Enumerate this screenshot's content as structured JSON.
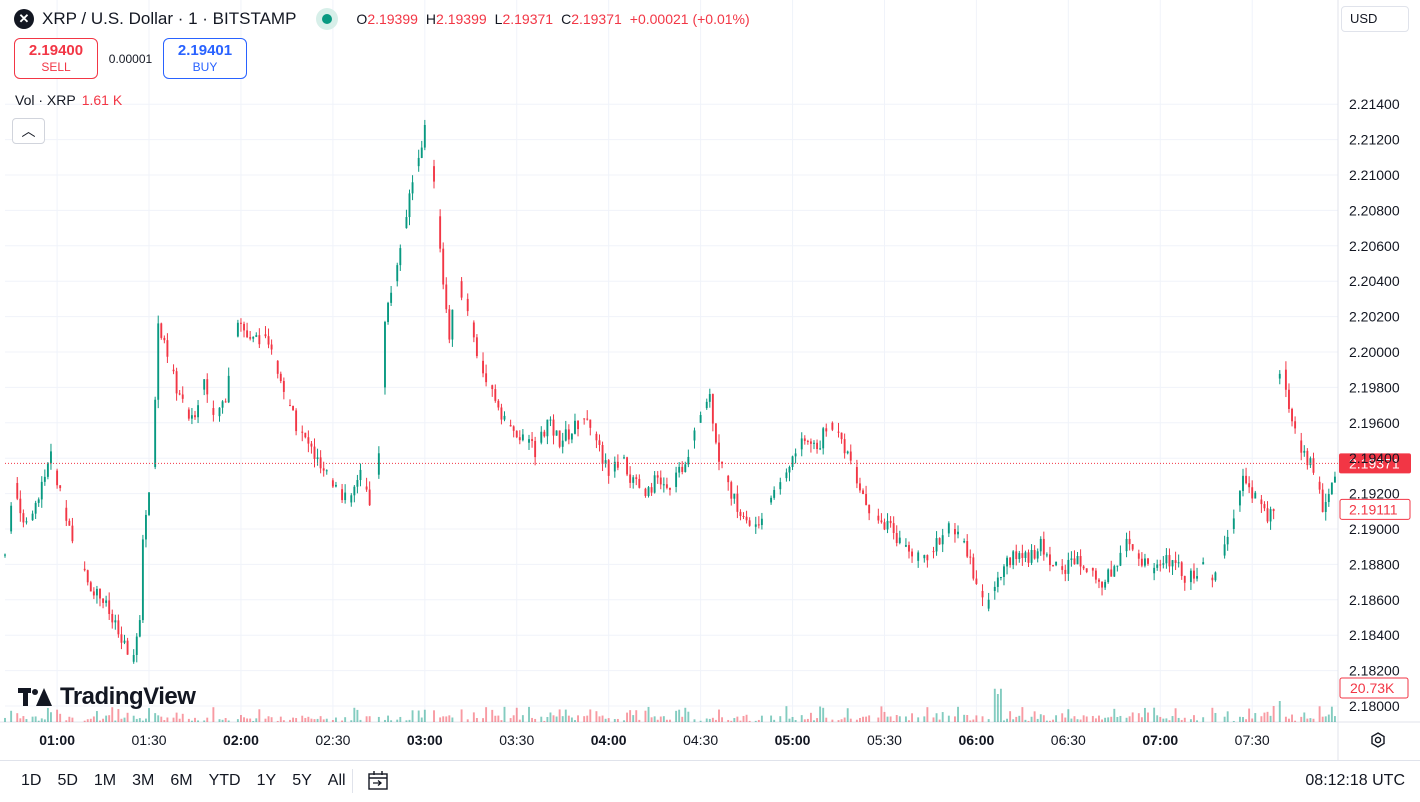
{
  "header": {
    "symbol_icon": "x-icon",
    "title": "XRP / U.S. Dollar · 1 · BITSTAMP",
    "market_status_color": "#089981",
    "ohlc": {
      "o_label": "O",
      "o": "2.19399",
      "h_label": "H",
      "h": "2.19399",
      "l_label": "L",
      "l": "2.19371",
      "c_label": "C",
      "c": "2.19371",
      "change": "+0.00021 (+0.01%)"
    }
  },
  "trade": {
    "sell_price": "2.19400",
    "sell_label": "SELL",
    "spread": "0.00001",
    "buy_price": "2.19401",
    "buy_label": "BUY"
  },
  "volume_legend": {
    "label": "Vol · XRP",
    "value": "1.61 K"
  },
  "currency": "USD",
  "logo_text": "TradingView",
  "bottom": {
    "ranges": [
      "1D",
      "5D",
      "1M",
      "3M",
      "6M",
      "YTD",
      "1Y",
      "5Y",
      "All"
    ],
    "clock": "08:12:18 UTC"
  },
  "chart_data": {
    "type": "candlestick",
    "timeframe_minutes": 1,
    "x_range": [
      "00:43",
      "07:58"
    ],
    "ylim": [
      2.1795,
      2.2155
    ],
    "y_ticks": [
      "2.18000",
      "2.18200",
      "2.18400",
      "2.18600",
      "2.18800",
      "2.19000",
      "2.19200",
      "2.19400",
      "2.19600",
      "2.19800",
      "2.20000",
      "2.20200",
      "2.20400",
      "2.20600",
      "2.20800",
      "2.21000",
      "2.21200",
      "2.21400"
    ],
    "x_ticks": [
      {
        "t": "01:00",
        "bold": true
      },
      {
        "t": "01:30",
        "bold": false
      },
      {
        "t": "02:00",
        "bold": true
      },
      {
        "t": "02:30",
        "bold": false
      },
      {
        "t": "03:00",
        "bold": true
      },
      {
        "t": "03:30",
        "bold": false
      },
      {
        "t": "04:00",
        "bold": true
      },
      {
        "t": "04:30",
        "bold": false
      },
      {
        "t": "05:00",
        "bold": true
      },
      {
        "t": "05:30",
        "bold": false
      },
      {
        "t": "06:00",
        "bold": true
      },
      {
        "t": "06:30",
        "bold": false
      },
      {
        "t": "07:00",
        "bold": true
      },
      {
        "t": "07:30",
        "bold": false
      }
    ],
    "last_price": {
      "value": 2.19371,
      "label": "2.19371",
      "color": "#f23645"
    },
    "reference_price": {
      "value": 2.19111,
      "label": "2.19111"
    },
    "volume_last_label": "20.73K",
    "up_color": "#089981",
    "down_color": "#f23645",
    "price_path": [
      [
        "00:43",
        2.1885
      ],
      [
        "00:46",
        2.1926
      ],
      [
        "00:50",
        2.19
      ],
      [
        "00:54",
        2.192
      ],
      [
        "00:58",
        2.194
      ],
      [
        "01:03",
        2.1905
      ],
      [
        "01:06",
        2.1885
      ],
      [
        "01:10",
        2.187
      ],
      [
        "01:15",
        2.186
      ],
      [
        "01:20",
        2.184
      ],
      [
        "01:24",
        2.1825
      ],
      [
        "01:27",
        2.1845
      ],
      [
        "01:28",
        2.1895
      ],
      [
        "01:31",
        2.1935
      ],
      [
        "01:33",
        2.2015
      ],
      [
        "01:37",
        2.199
      ],
      [
        "01:40",
        2.1975
      ],
      [
        "01:44",
        2.196
      ],
      [
        "01:48",
        2.1985
      ],
      [
        "01:51",
        2.196
      ],
      [
        "01:55",
        2.1975
      ],
      [
        "01:59",
        2.202
      ],
      [
        "02:03",
        2.2005
      ],
      [
        "02:07",
        2.201
      ],
      [
        "02:11",
        2.1995
      ],
      [
        "02:15",
        2.197
      ],
      [
        "02:19",
        2.1955
      ],
      [
        "02:23",
        2.1945
      ],
      [
        "02:27",
        2.193
      ],
      [
        "02:31",
        2.1925
      ],
      [
        "02:35",
        2.1915
      ],
      [
        "02:39",
        2.193
      ],
      [
        "02:42",
        2.1912
      ],
      [
        "02:45",
        2.194
      ],
      [
        "02:47",
        2.202
      ],
      [
        "02:50",
        2.204
      ],
      [
        "02:54",
        2.208
      ],
      [
        "02:57",
        2.2105
      ],
      [
        "03:00",
        2.2125
      ],
      [
        "03:03",
        2.2095
      ],
      [
        "03:06",
        2.204
      ],
      [
        "03:08",
        2.201
      ],
      [
        "03:11",
        2.204
      ],
      [
        "03:14",
        2.2025
      ],
      [
        "03:17",
        2.2
      ],
      [
        "03:20",
        2.1985
      ],
      [
        "03:24",
        2.197
      ],
      [
        "03:28",
        2.1955
      ],
      [
        "03:32",
        2.195
      ],
      [
        "03:36",
        2.1945
      ],
      [
        "03:40",
        2.196
      ],
      [
        "03:44",
        2.195
      ],
      [
        "03:48",
        2.1955
      ],
      [
        "03:52",
        2.1965
      ],
      [
        "03:56",
        2.195
      ],
      [
        "04:00",
        2.193
      ],
      [
        "04:04",
        2.194
      ],
      [
        "04:08",
        2.1925
      ],
      [
        "04:12",
        2.1922
      ],
      [
        "04:16",
        2.1928
      ],
      [
        "04:20",
        2.192
      ],
      [
        "04:24",
        2.1935
      ],
      [
        "04:27",
        2.195
      ],
      [
        "04:30",
        2.1965
      ],
      [
        "04:33",
        2.1975
      ],
      [
        "04:36",
        2.194
      ],
      [
        "04:40",
        2.192
      ],
      [
        "04:44",
        2.1905
      ],
      [
        "04:48",
        2.19
      ],
      [
        "04:52",
        2.1915
      ],
      [
        "04:56",
        2.1925
      ],
      [
        "05:00",
        2.194
      ],
      [
        "05:04",
        2.195
      ],
      [
        "05:08",
        2.1945
      ],
      [
        "05:12",
        2.196
      ],
      [
        "05:16",
        2.195
      ],
      [
        "05:20",
        2.1935
      ],
      [
        "05:24",
        2.1915
      ],
      [
        "05:28",
        2.1905
      ],
      [
        "05:32",
        2.19
      ],
      [
        "05:36",
        2.189
      ],
      [
        "05:40",
        2.1882
      ],
      [
        "05:44",
        2.1885
      ],
      [
        "05:48",
        2.1895
      ],
      [
        "05:52",
        2.19
      ],
      [
        "05:56",
        2.189
      ],
      [
        "06:00",
        2.187
      ],
      [
        "06:03",
        2.1855
      ],
      [
        "06:06",
        2.187
      ],
      [
        "06:09",
        2.188
      ],
      [
        "06:13",
        2.1885
      ],
      [
        "06:17",
        2.1885
      ],
      [
        "06:21",
        2.189
      ],
      [
        "06:25",
        2.188
      ],
      [
        "06:29",
        2.1878
      ],
      [
        "06:33",
        2.1885
      ],
      [
        "06:37",
        2.1878
      ],
      [
        "06:41",
        2.1868
      ],
      [
        "06:45",
        2.188
      ],
      [
        "06:49",
        2.189
      ],
      [
        "06:53",
        2.1885
      ],
      [
        "06:57",
        2.1875
      ],
      [
        "07:01",
        2.188
      ],
      [
        "07:05",
        2.1885
      ],
      [
        "07:09",
        2.187
      ],
      [
        "07:13",
        2.188
      ],
      [
        "07:17",
        2.187
      ],
      [
        "07:21",
        2.189
      ],
      [
        "07:24",
        2.1905
      ],
      [
        "07:27",
        2.193
      ],
      [
        "07:30",
        2.192
      ],
      [
        "07:33",
        2.1915
      ],
      [
        "07:35",
        2.1905
      ],
      [
        "07:37",
        2.191
      ],
      [
        "07:38",
        2.1985
      ],
      [
        "07:40",
        2.199
      ],
      [
        "07:43",
        2.196
      ],
      [
        "07:46",
        2.1945
      ],
      [
        "07:50",
        2.1935
      ],
      [
        "07:53",
        2.191
      ],
      [
        "07:56",
        2.1925
      ],
      [
        "07:58",
        2.1937
      ]
    ],
    "volume_spikes": [
      [
        "01:31",
        0.55
      ],
      [
        "03:00",
        0.35
      ],
      [
        "03:33",
        0.55
      ],
      [
        "05:34",
        0.2
      ],
      [
        "05:57",
        0.2
      ],
      [
        "06:06",
        0.95
      ],
      [
        "06:07",
        0.8
      ],
      [
        "06:08",
        0.95
      ],
      [
        "07:25",
        0.3
      ],
      [
        "07:38",
        2.8
      ],
      [
        "07:39",
        0.6
      ],
      [
        "07:58",
        0.3
      ]
    ]
  }
}
